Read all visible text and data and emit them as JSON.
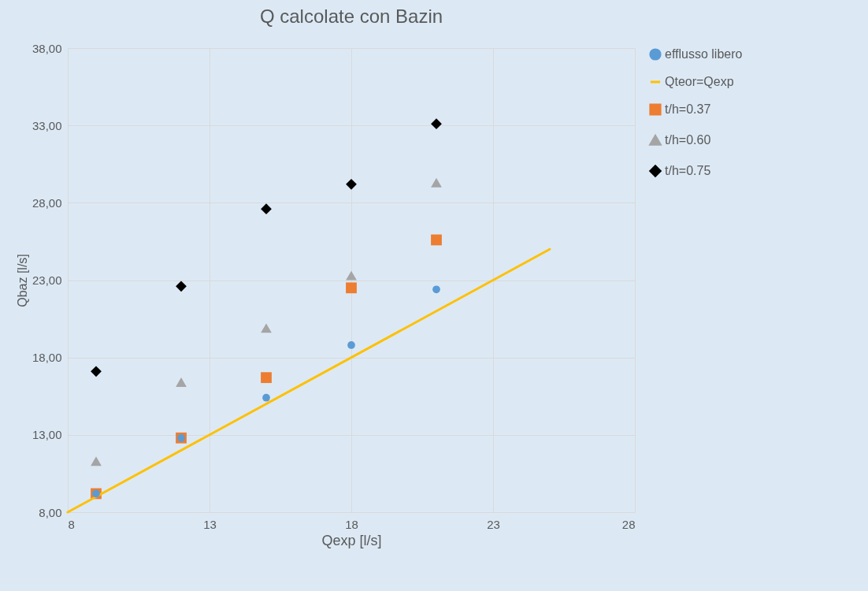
{
  "chart_data": {
    "type": "scatter",
    "title": "Q calcolate con Bazin",
    "xlabel": "Qexp [l/s]",
    "ylabel": "Qbaz  [l/s]",
    "xlim": [
      8,
      28
    ],
    "xticks": [
      8,
      13,
      18,
      23,
      28
    ],
    "ylim": [
      8,
      38
    ],
    "yticks": [
      {
        "value": 8,
        "label": "8,00"
      },
      {
        "value": 13,
        "label": "13,00"
      },
      {
        "value": 18,
        "label": "18,00"
      },
      {
        "value": 23,
        "label": "23,00"
      },
      {
        "value": 28,
        "label": "28,00"
      },
      {
        "value": 33,
        "label": "33,00"
      },
      {
        "value": 38,
        "label": "38,00"
      }
    ],
    "grid": true,
    "legend": "right",
    "x": [
      9,
      12,
      15,
      18,
      21
    ],
    "series": [
      {
        "name": "efflusso libero",
        "color": "#5b9bd5",
        "marker": "circle",
        "values": [
          9.2,
          12.8,
          15.4,
          18.8,
          22.4
        ]
      },
      {
        "name": "Qteor=Qexp",
        "type": "line",
        "color": "#ffc000",
        "marker": "none",
        "x": [
          8,
          25
        ],
        "values": [
          8,
          25
        ]
      },
      {
        "name": "t/h=0.37",
        "color": "#ed7d31",
        "marker": "square",
        "values": [
          9.2,
          12.8,
          16.7,
          22.5,
          25.6
        ]
      },
      {
        "name": "t/h=0.60",
        "color": "#a5a5a5",
        "marker": "triangle",
        "values": [
          11.3,
          16.4,
          19.9,
          23.3,
          29.3
        ]
      },
      {
        "name": "t/h=0.75",
        "color": "#000000",
        "marker": "diamond",
        "values": [
          17.1,
          22.6,
          27.6,
          29.2,
          33.1
        ]
      }
    ]
  }
}
